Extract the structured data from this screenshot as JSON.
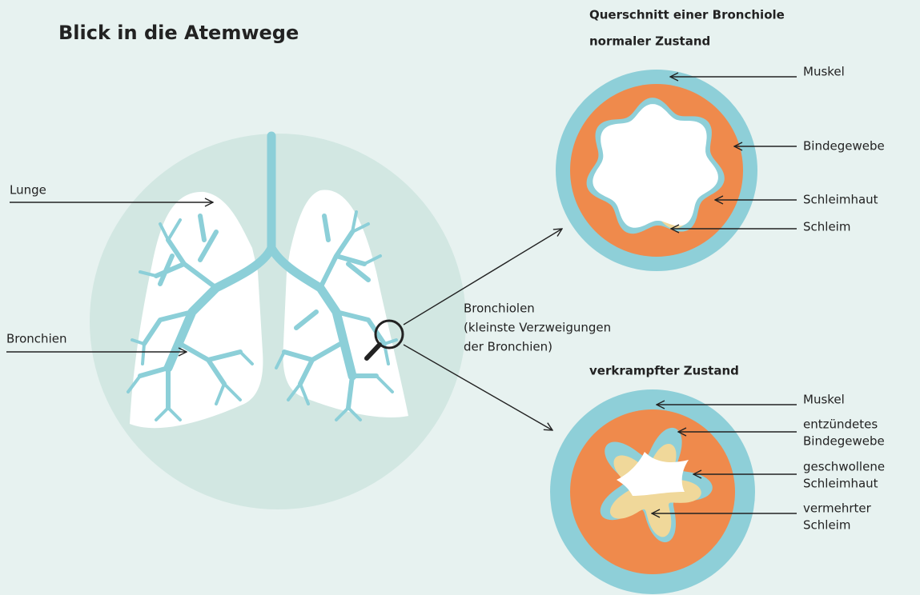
{
  "title": "Blick in die Atemwege",
  "lung": {
    "labels": [
      "Lunge",
      "Bronchien"
    ]
  },
  "bronchioles": {
    "lines": [
      "Bronchiolen",
      "(kleinste Verzweigungen",
      "der Bronchien)"
    ]
  },
  "cross_section": {
    "heading": "Querschnitt einer Bronchiole"
  },
  "normal": {
    "heading": "normaler Zustand",
    "labels": [
      [
        "Muskel"
      ],
      [
        "Bindegewebe"
      ],
      [
        "Schleimhaut"
      ],
      [
        "Schleim"
      ]
    ]
  },
  "cramped": {
    "heading": "verkrampfter Zustand",
    "labels": [
      [
        "Muskel"
      ],
      [
        "entzündetes",
        "Bindegewebe"
      ],
      [
        "geschwollene",
        "Schleimhaut"
      ],
      [
        "vermehrter",
        "Schleim"
      ]
    ]
  }
}
